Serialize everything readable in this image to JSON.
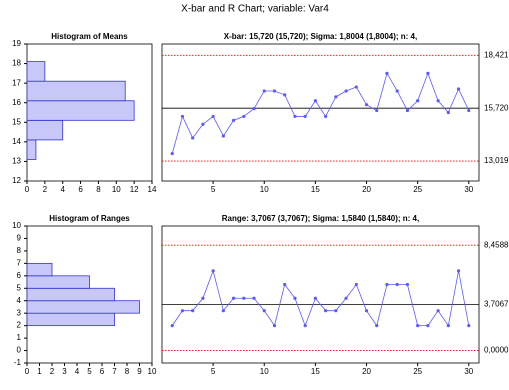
{
  "title": "X-bar and R Chart; variable:  Var4",
  "chart_data": [
    {
      "type": "histogram",
      "orientation": "horizontal",
      "title": "Histogram of Means",
      "bins": [
        13.1,
        14.1,
        15.1,
        16.1,
        17.1,
        18.1
      ],
      "values": [
        1,
        4,
        12,
        11,
        2
      ],
      "color": "#c8c8f8",
      "edge_color": "#3333cc",
      "xlim": [
        0,
        14
      ],
      "xticks": [
        0,
        2,
        4,
        6,
        8,
        10,
        12,
        14
      ],
      "ylim": [
        12,
        19
      ],
      "yticks": [
        12,
        13,
        14,
        15,
        16,
        17,
        18,
        19
      ]
    },
    {
      "type": "line",
      "title": "X-bar: 15,720 (15,720); Sigma: 1,8004 (1,8004); n: 4,",
      "x": [
        1,
        2,
        3,
        4,
        5,
        6,
        7,
        8,
        9,
        10,
        11,
        12,
        13,
        14,
        15,
        16,
        17,
        18,
        19,
        20,
        21,
        22,
        23,
        24,
        25,
        26,
        27,
        28,
        29,
        30
      ],
      "series": [
        {
          "color": "#5a5aff",
          "values": [
            13.4,
            15.3,
            14.2,
            14.9,
            15.3,
            14.3,
            15.1,
            15.3,
            15.7,
            16.6,
            16.6,
            16.4,
            15.3,
            15.3,
            16.1,
            15.3,
            16.3,
            16.6,
            16.8,
            15.9,
            15.6,
            17.5,
            16.6,
            15.6,
            16.1,
            17.5,
            16.1,
            15.5,
            16.7,
            15.6
          ]
        }
      ],
      "xlim": [
        0,
        31
      ],
      "xticks": [
        5,
        10,
        15,
        20,
        25,
        30
      ],
      "ylim": [
        12,
        19
      ],
      "reference_lines": [
        {
          "value": 18.421,
          "label": "18,421"
        },
        {
          "value": 15.72,
          "label": "15,720"
        },
        {
          "value": 13.019,
          "label": "13,019"
        }
      ],
      "reference_colors": [
        "#ff0000",
        "#000000",
        "#ff0000"
      ]
    },
    {
      "type": "histogram",
      "orientation": "horizontal",
      "title": "Histogram of Ranges",
      "bins": [
        2,
        3,
        4,
        5,
        6,
        7
      ],
      "values": [
        7,
        9,
        7,
        5,
        2
      ],
      "color": "#c8c8f8",
      "edge_color": "#3333cc",
      "xlim": [
        0,
        10
      ],
      "xticks": [
        0,
        1,
        2,
        3,
        4,
        5,
        6,
        7,
        8,
        9,
        10
      ],
      "ylim": [
        -1,
        10
      ],
      "yticks": [
        -1,
        0,
        1,
        2,
        3,
        4,
        5,
        6,
        7,
        8,
        9,
        10
      ]
    },
    {
      "type": "line",
      "title": "Range: 3,7067 (3,7067); Sigma: 1,5840 (1,5840); n: 4,",
      "x": [
        1,
        2,
        3,
        4,
        5,
        6,
        7,
        8,
        9,
        10,
        11,
        12,
        13,
        14,
        15,
        16,
        17,
        18,
        19,
        20,
        21,
        22,
        23,
        24,
        25,
        26,
        27,
        28,
        29,
        30
      ],
      "series": [
        {
          "color": "#5a5aff",
          "values": [
            2.0,
            3.2,
            3.2,
            4.2,
            6.4,
            3.2,
            4.2,
            4.2,
            4.2,
            3.2,
            2.0,
            5.3,
            4.2,
            2.0,
            4.2,
            3.2,
            3.2,
            4.2,
            5.3,
            3.2,
            2.0,
            5.3,
            5.3,
            5.3,
            2.0,
            2.0,
            3.2,
            2.0,
            6.4,
            2.0
          ]
        }
      ],
      "xlim": [
        0,
        31
      ],
      "xticks": [
        5,
        10,
        15,
        20,
        25,
        30
      ],
      "ylim": [
        -1,
        10
      ],
      "reference_lines": [
        {
          "value": 8.4588,
          "label": "8,4588"
        },
        {
          "value": 3.7067,
          "label": "3,7067"
        },
        {
          "value": 0,
          "label": "0,0000"
        }
      ],
      "reference_colors": [
        "#ff0000",
        "#000000",
        "#ff0000"
      ]
    }
  ]
}
